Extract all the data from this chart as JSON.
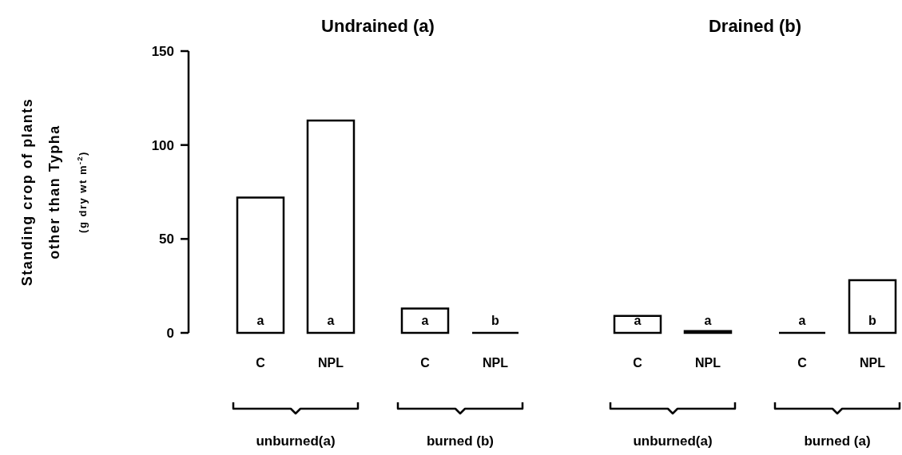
{
  "chart_data": [
    {
      "type": "bar",
      "title": "Undrained (a)",
      "ylabel": "Standing crop of plants\nother than Typha\n(g dry wt m$^{-2}$)",
      "categories": [
        "C",
        "NPL",
        "C",
        "NPL"
      ],
      "values": [
        72,
        113,
        13,
        0
      ],
      "value_labels": [
        "a",
        "a",
        "a",
        "b"
      ],
      "colors": [
        "#ffffff",
        "#ffffff",
        "#ffffff",
        "#000000"
      ],
      "ylim": [
        0,
        150
      ],
      "yticks": [
        0,
        50,
        100,
        150
      ],
      "annotations": [
        "unburned(a)",
        "burned (b)"
      ]
    },
    {
      "type": "bar",
      "title": "Drained (b)",
      "categories": [
        "C",
        "NPL",
        "C",
        "NPL"
      ],
      "values": [
        9,
        1,
        0,
        28
      ],
      "value_labels": [
        "a",
        "a",
        "a",
        "b"
      ],
      "colors": [
        "#ffffff",
        "#000000",
        "#000000",
        "#ffffff"
      ],
      "ylim": [
        0,
        150
      ],
      "tick_labels": "x",
      "annotations": [
        "unburned(a)",
        "burned (a)"
      ]
    }
  ]
}
